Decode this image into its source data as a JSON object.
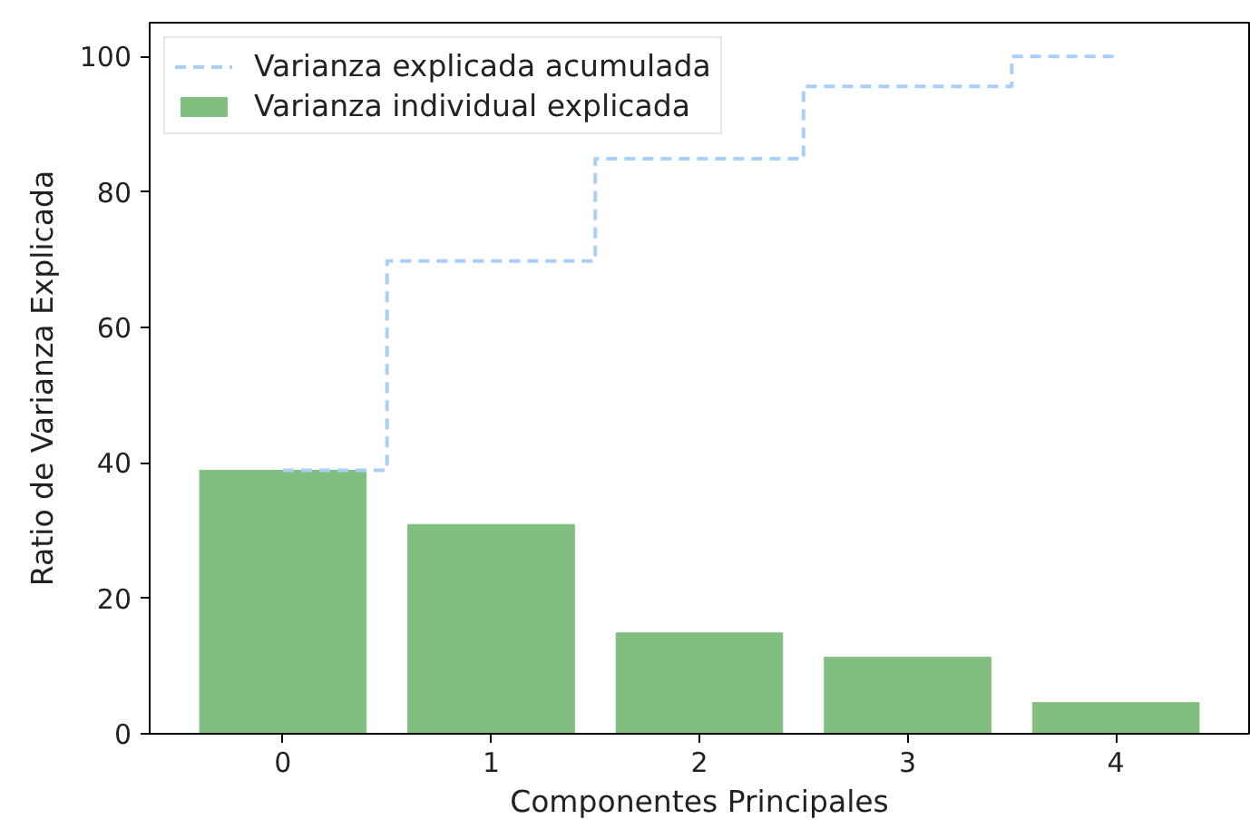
{
  "chart_data": {
    "type": "bar",
    "xlabel": "Componentes Principales",
    "ylabel": "Ratio de Varianza Explicada",
    "categories": [
      "0",
      "1",
      "2",
      "3",
      "4"
    ],
    "series": [
      {
        "type": "step",
        "name": "Varianza explicada acumulada",
        "color": "#a8cff8",
        "line_style": "dashed",
        "values": [
          38.9,
          69.8,
          84.9,
          95.6,
          100
        ]
      },
      {
        "name": "Varianza individual explicada",
        "color": "#80bf80",
        "values": [
          38.9,
          30.9,
          14.9,
          11.3,
          4.6
        ]
      }
    ],
    "ylim": [
      0,
      105
    ],
    "yticks": [
      0,
      20,
      40,
      60,
      80,
      100
    ],
    "legend": "top left",
    "grid": false
  }
}
